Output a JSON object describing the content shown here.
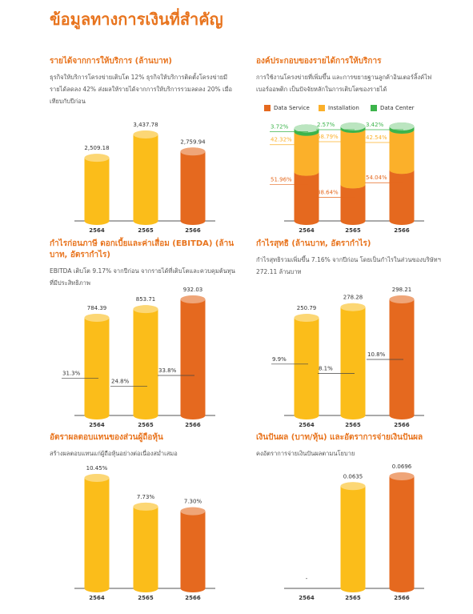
{
  "page_title": "ข้อมูลทางการเงินที่สำคัญ",
  "chart_data": [
    {
      "type": "bar",
      "title": "รายได้จากการให้บริการ (ล้านบาท)",
      "description": "ธุรกิจให้บริการโครงข่ายเติบโต 12% ธุรกิจให้บริการติดตั้งโครงข่ายมีรายได้ลดลง 42% ส่งผลให้รายได้จากการให้บริการรวมลดลง 20% เมื่อเทียบกับปีก่อน",
      "categories": [
        "2564",
        "2565",
        "2566"
      ],
      "series": [
        {
          "values": [
            2509.18,
            3437.78,
            2759.94
          ],
          "value_labels": [
            "2,509.18",
            "3,437.78",
            "2,759.94"
          ],
          "colors": [
            "#fbbd1a",
            "#fbbd1a",
            "#e5691f"
          ]
        }
      ]
    },
    {
      "type": "stacked_bar",
      "title": "องค์ประกอบของรายได้การให้บริการ",
      "description": "การใช้งานโครงข่ายที่เพิ่มขึ้น และการขยายฐานลูกค้าอินเตอร์ลิ้งค์ไฟเบอร์ออพติก เป็นปัจจัยหลักในการเติบโตของรายได้",
      "categories": [
        "2564",
        "2565",
        "2566"
      ],
      "series": [
        {
          "name": "Data Service",
          "color": "#e5691f",
          "values": [
            51.96,
            38.64,
            54.04
          ],
          "value_labels": [
            "51.96%",
            "38.64%",
            "54.04%"
          ]
        },
        {
          "name": "Installation",
          "color": "#fbb02a",
          "values": [
            42.32,
            58.79,
            42.54
          ],
          "value_labels": [
            "42.32%",
            "58.79%",
            "42.54%"
          ]
        },
        {
          "name": "Data Center",
          "color": "#3cb44b",
          "values": [
            3.72,
            2.57,
            3.42
          ],
          "value_labels": [
            "3.72%",
            "2.57%",
            "3.42%"
          ]
        }
      ]
    },
    {
      "type": "bar",
      "title": "กำไรก่อนภาษี ดอกเบี้ยและค่าเสื่อม (EBITDA) (ล้านบาท, อัตรากำไร)",
      "description": "EBITDA เติบโต 9.17% จากปีก่อน จากรายได้ที่เติบโตและควบคุมต้นทุนที่มีประสิทธิภาพ",
      "categories": [
        "2564",
        "2565",
        "2566"
      ],
      "series": [
        {
          "values": [
            784.39,
            853.71,
            932.03
          ],
          "colors": [
            "#fbbd1a",
            "#fbbd1a",
            "#e5691f"
          ]
        },
        {
          "axis": "y2",
          "values": [
            31.3,
            24.8,
            33.8
          ],
          "value_labels": [
            "31.3%",
            "24.8%",
            "33.8%"
          ]
        }
      ]
    },
    {
      "type": "bar",
      "title": "กำไรสุทธิ (ล้านบาท, อัตรากำไร)",
      "description": "กำไรสุทธิรวมเพิ่มขึ้น 7.16% จากปีก่อน โดยเป็นกำไรในส่วนของบริษัทฯ 272.11 ล้านบาท",
      "categories": [
        "2564",
        "2565",
        "2566"
      ],
      "series": [
        {
          "values": [
            250.79,
            278.28,
            298.21
          ],
          "colors": [
            "#fbbd1a",
            "#fbbd1a",
            "#e5691f"
          ]
        },
        {
          "axis": "y2",
          "values": [
            9.9,
            8.1,
            10.8
          ],
          "value_labels": [
            "9.9%",
            "8.1%",
            "10.8%"
          ]
        }
      ]
    },
    {
      "type": "bar",
      "title": "อัตราผลตอบแทนของส่วนผู้ถือหุ้น",
      "description": "สร้างผลตอบแทนแก่ผู้ถือหุ้นอย่างต่อเนื่องสม่ำเสมอ",
      "categories": [
        "2564",
        "2565",
        "2566"
      ],
      "series": [
        {
          "values": [
            10.45,
            7.73,
            7.3
          ],
          "value_labels": [
            "10.45%",
            "7.73%",
            "7.30%"
          ],
          "colors": [
            "#fbbd1a",
            "#fbbd1a",
            "#e5691f"
          ]
        }
      ]
    },
    {
      "type": "bar",
      "title": "เงินปันผล (บาท/หุ้น) และอัตราการจ่ายเงินปันผล",
      "description": "คงอัตราการจ่ายเงินปันผลตามนโยบาย",
      "categories": [
        "2564",
        "2565",
        "2566"
      ],
      "series": [
        {
          "values": [
            null,
            0.0635,
            0.0696
          ],
          "value_labels": [
            "-",
            "0.0635",
            "0.0696"
          ],
          "colors": [
            "#fbbd1a",
            "#fbbd1a",
            "#e5691f"
          ]
        }
      ]
    }
  ]
}
